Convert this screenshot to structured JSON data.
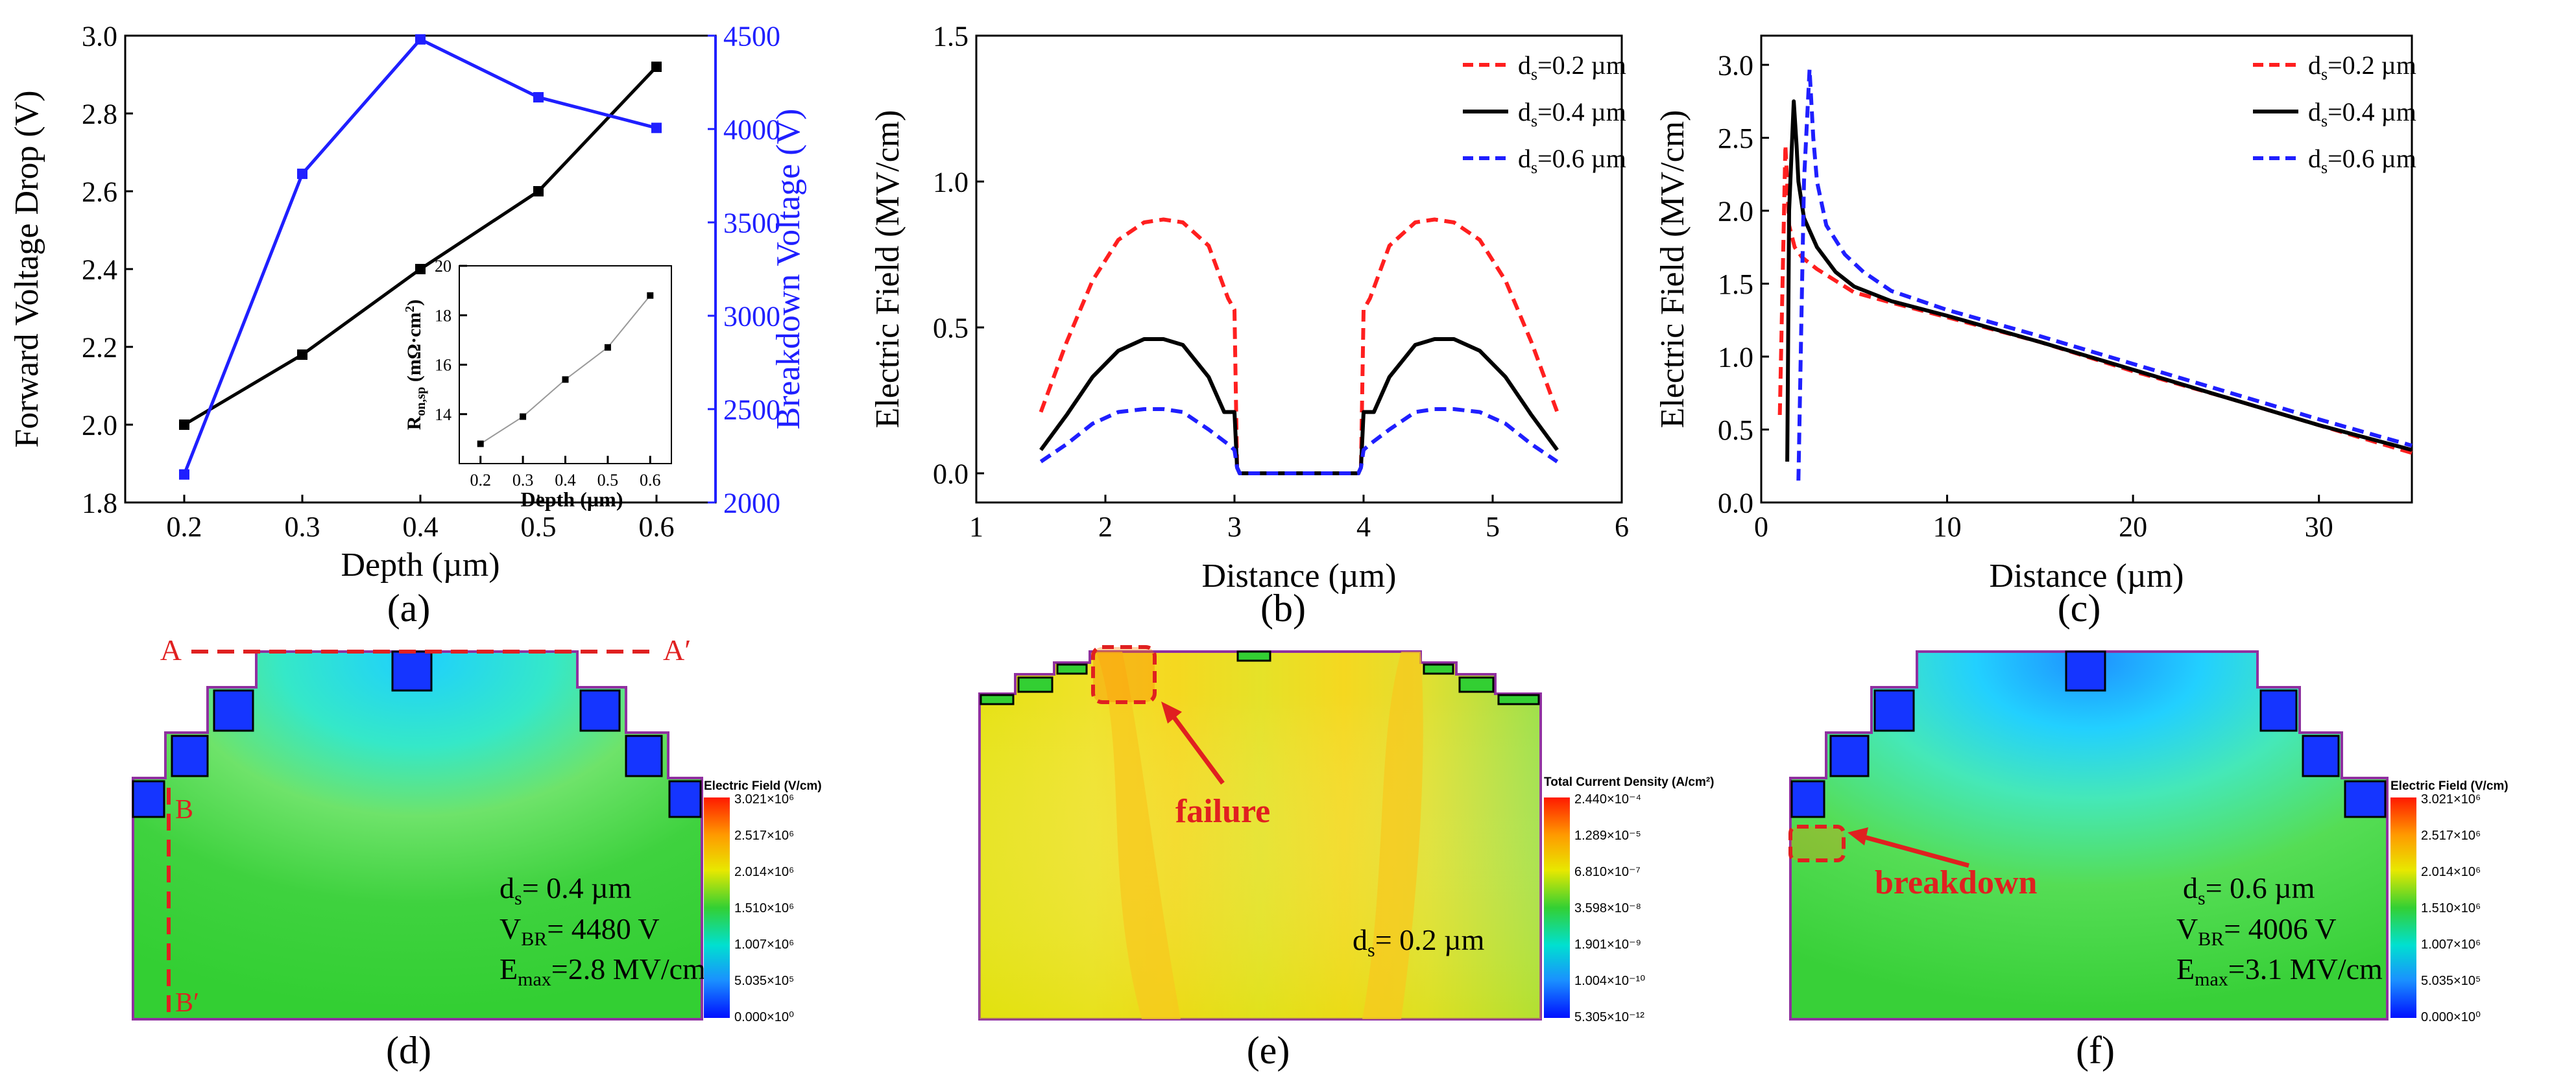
{
  "colors": {
    "black": "#000000",
    "blue": "#1f1fff",
    "red": "#ff1f1f",
    "annotation_red": "#e02020",
    "device_green": "#3ad03a",
    "outline_purple": "#9030a0"
  },
  "chart_data": [
    {
      "id": "a",
      "type": "line",
      "panel_label": "(a)",
      "xlabel": "Depth (µm)",
      "ylabel": "Forward Voltage Drop (V)",
      "ylabel_right": "Breakdown Voltage (V)",
      "xlim": [
        0.15,
        0.65
      ],
      "ylim": [
        1.8,
        3.0
      ],
      "ylim_right": [
        2000,
        4500
      ],
      "x_ticks": [
        "0.2",
        "0.3",
        "0.4",
        "0.5",
        "0.6"
      ],
      "y_ticks": [
        "1.8",
        "2.0",
        "2.2",
        "2.4",
        "2.6",
        "2.8",
        "3.0"
      ],
      "y_right_ticks": [
        "2000",
        "2500",
        "3000",
        "3500",
        "4000",
        "4500"
      ],
      "series": [
        {
          "axis": "left",
          "color": "#000000",
          "marker": "square",
          "x": [
            0.2,
            0.3,
            0.4,
            0.5,
            0.6
          ],
          "y": [
            2.0,
            2.18,
            2.4,
            2.6,
            2.92
          ]
        },
        {
          "axis": "right",
          "color": "#1f1fff",
          "marker": "square",
          "x": [
            0.2,
            0.3,
            0.4,
            0.5,
            0.6
          ],
          "y": [
            2150,
            3760,
            4480,
            4170,
            4006
          ]
        }
      ],
      "inset": {
        "type": "line",
        "xlabel": "Depth (µm)",
        "ylabel_main": "R",
        "ylabel_sub": "on,sp",
        "ylabel_unit": "(mΩ·cm",
        "ylabel_sup": "2",
        "ylabel_close": ")",
        "xlim": [
          0.15,
          0.65
        ],
        "ylim": [
          12,
          20
        ],
        "x_ticks": [
          "0.2",
          "0.3",
          "0.4",
          "0.5",
          "0.6"
        ],
        "y_ticks": [
          "14",
          "16",
          "18",
          "20"
        ],
        "series": [
          {
            "color": "#000000",
            "marker": "square",
            "x": [
              0.2,
              0.3,
              0.4,
              0.5,
              0.6
            ],
            "y": [
              12.8,
              13.9,
              15.4,
              16.7,
              18.8
            ]
          }
        ]
      }
    },
    {
      "id": "b",
      "type": "line",
      "panel_label": "(b)",
      "xlabel": "Distance (µm)",
      "ylabel": "Electric Field (MV/cm)",
      "xlim": [
        1,
        6
      ],
      "ylim": [
        -0.1,
        1.5
      ],
      "x_ticks": [
        "1",
        "2",
        "3",
        "4",
        "5",
        "6"
      ],
      "y_ticks": [
        "0.0",
        "0.5",
        "1.0",
        "1.5"
      ],
      "legend_position": "top-right",
      "series": [
        {
          "label_main": "d",
          "label_sub": "s",
          "label_rest": "=0.2 µm",
          "color": "#ff1f1f",
          "dash": true,
          "x": [
            1.5,
            1.7,
            1.9,
            2.1,
            2.3,
            2.45,
            2.6,
            2.8,
            2.95,
            3.0,
            3.02,
            3.04,
            3.5,
            3.96,
            3.98,
            4.0,
            4.05,
            4.2,
            4.4,
            4.55,
            4.7,
            4.9,
            5.1,
            5.3,
            5.5
          ],
          "y": [
            0.21,
            0.45,
            0.66,
            0.8,
            0.86,
            0.87,
            0.86,
            0.78,
            0.6,
            0.56,
            0.02,
            0.0,
            0.0,
            0.0,
            0.02,
            0.56,
            0.6,
            0.78,
            0.86,
            0.87,
            0.86,
            0.8,
            0.66,
            0.45,
            0.21
          ]
        },
        {
          "label_main": "d",
          "label_sub": "s",
          "label_rest": "=0.4 µm",
          "color": "#000000",
          "dash": false,
          "x": [
            1.5,
            1.7,
            1.9,
            2.1,
            2.3,
            2.45,
            2.6,
            2.8,
            2.92,
            3.0,
            3.02,
            3.04,
            3.5,
            3.96,
            3.98,
            4.0,
            4.08,
            4.2,
            4.4,
            4.55,
            4.7,
            4.9,
            5.1,
            5.3,
            5.5
          ],
          "y": [
            0.08,
            0.2,
            0.33,
            0.42,
            0.46,
            0.46,
            0.44,
            0.33,
            0.21,
            0.21,
            0.02,
            0.0,
            0.0,
            0.0,
            0.02,
            0.21,
            0.21,
            0.33,
            0.44,
            0.46,
            0.46,
            0.42,
            0.33,
            0.2,
            0.08
          ]
        },
        {
          "label_main": "d",
          "label_sub": "s",
          "label_rest": "=0.6 µm",
          "color": "#1f1fff",
          "dash": true,
          "x": [
            1.5,
            1.7,
            1.9,
            2.1,
            2.3,
            2.45,
            2.6,
            2.8,
            2.95,
            3.0,
            3.02,
            3.04,
            3.5,
            3.96,
            3.98,
            4.0,
            4.05,
            4.2,
            4.4,
            4.55,
            4.7,
            4.9,
            5.1,
            5.3,
            5.5
          ],
          "y": [
            0.04,
            0.1,
            0.17,
            0.21,
            0.22,
            0.22,
            0.21,
            0.15,
            0.1,
            0.08,
            0.02,
            0.0,
            0.0,
            0.0,
            0.02,
            0.08,
            0.1,
            0.15,
            0.21,
            0.22,
            0.22,
            0.21,
            0.17,
            0.1,
            0.04
          ]
        }
      ]
    },
    {
      "id": "c",
      "type": "line",
      "panel_label": "(c)",
      "xlabel": "Distance (µm)",
      "ylabel": "Electric Field (MV/cm)",
      "xlim": [
        0,
        35
      ],
      "ylim": [
        0.0,
        3.2
      ],
      "x_ticks": [
        "0",
        "10",
        "20",
        "30"
      ],
      "y_ticks": [
        "0.0",
        "0.5",
        "1.0",
        "1.5",
        "2.0",
        "2.5",
        "3.0"
      ],
      "legend_position": "top-right",
      "series": [
        {
          "label_main": "d",
          "label_sub": "s",
          "label_rest": "=0.2 µm",
          "color": "#ff1f1f",
          "dash": true,
          "x": [
            1.0,
            1.3,
            1.5,
            1.8,
            2.2,
            3.0,
            4.0,
            5.0,
            7.0,
            10,
            15,
            20,
            25,
            30,
            35
          ],
          "y": [
            0.6,
            2.45,
            1.9,
            1.75,
            1.68,
            1.6,
            1.52,
            1.44,
            1.37,
            1.27,
            1.1,
            0.9,
            0.72,
            0.53,
            0.34
          ]
        },
        {
          "label_main": "d",
          "label_sub": "s",
          "label_rest": "=0.4 µm",
          "color": "#000000",
          "dash": false,
          "x": [
            1.4,
            1.5,
            1.75,
            1.9,
            2.0,
            2.3,
            3.0,
            4.0,
            5.0,
            7.0,
            10,
            15,
            20,
            25,
            30,
            35
          ],
          "y": [
            0.28,
            2.0,
            2.75,
            2.45,
            2.2,
            1.95,
            1.75,
            1.58,
            1.48,
            1.38,
            1.28,
            1.1,
            0.91,
            0.72,
            0.53,
            0.36
          ]
        },
        {
          "label_main": "d",
          "label_sub": "s",
          "label_rest": "=0.6 µm",
          "color": "#1f1fff",
          "dash": true,
          "x": [
            2.0,
            2.3,
            2.6,
            2.8,
            3.0,
            3.5,
            4.5,
            5.5,
            7.0,
            10,
            15,
            20,
            25,
            30,
            35
          ],
          "y": [
            0.15,
            2.2,
            2.97,
            2.5,
            2.2,
            1.9,
            1.7,
            1.58,
            1.45,
            1.32,
            1.14,
            0.95,
            0.76,
            0.57,
            0.39
          ]
        }
      ]
    }
  ],
  "labels": {
    "d": "(d)",
    "e": "(e)",
    "f": "(f)",
    "pt_A": "A",
    "pt_A_prime": "A′",
    "pt_B": "B",
    "pt_B_prime": "B′",
    "failure": "failure",
    "breakdown": "breakdown"
  },
  "panel_d_text": {
    "ds_main": "d",
    "ds_sub": "s",
    "ds_rest": "= 0.4 µm",
    "vbr_main": "V",
    "vbr_sub": "BR",
    "vbr_rest": "= 4480 V",
    "emax_main": "E",
    "emax_sub": "max",
    "emax_rest": "=2.8 MV/cm"
  },
  "panel_e_text": {
    "ds_main": "d",
    "ds_sub": "s",
    "ds_rest": "= 0.2 µm"
  },
  "panel_f_text": {
    "ds_main": "d",
    "ds_sub": "s",
    "ds_rest": "= 0.6 µm",
    "vbr_main": "V",
    "vbr_sub": "BR",
    "vbr_rest": "= 4006 V",
    "emax_main": "E",
    "emax_sub": "max",
    "emax_rest": "=3.1 MV/cm"
  },
  "colorbars": {
    "field": {
      "title": "Electric Field (V/cm)",
      "ticks": [
        "3.021×10⁶",
        "2.517×10⁶",
        "2.014×10⁶",
        "1.510×10⁶",
        "1.007×10⁶",
        "5.035×10⁵",
        "0.000×10⁰"
      ]
    },
    "current": {
      "title": "Total Current Density (A/cm²)",
      "ticks": [
        "2.440×10⁻⁴",
        "1.289×10⁻⁵",
        "6.810×10⁻⁷",
        "3.598×10⁻⁸",
        "1.901×10⁻⁹",
        "1.004×10⁻¹⁰",
        "5.305×10⁻¹²"
      ]
    }
  }
}
